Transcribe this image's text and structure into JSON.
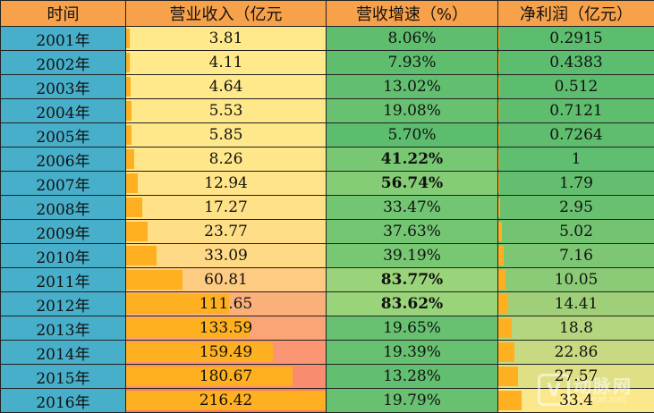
{
  "columns": [
    "时间",
    "营业收入（亿元",
    "营收增速（%）",
    "净利润（亿元）"
  ],
  "rows": [
    {
      "year": "2001年",
      "revenue": "3.81",
      "growth": "8.06%",
      "profit": "0.2915"
    },
    {
      "year": "2002年",
      "revenue": "4.11",
      "growth": "7.93%",
      "profit": "0.4383"
    },
    {
      "year": "2003年",
      "revenue": "4.64",
      "growth": "13.02%",
      "profit": "0.512"
    },
    {
      "year": "2004年",
      "revenue": "5.53",
      "growth": "19.08%",
      "profit": "0.7121"
    },
    {
      "year": "2005年",
      "revenue": "5.85",
      "growth": "5.70%",
      "profit": "0.7264"
    },
    {
      "year": "2006年",
      "revenue": "8.26",
      "growth": "41.22%",
      "profit": "1"
    },
    {
      "year": "2007年",
      "revenue": "12.94",
      "growth": "56.74%",
      "profit": "1.79"
    },
    {
      "year": "2008年",
      "revenue": "17.27",
      "growth": "33.47%",
      "profit": "2.95"
    },
    {
      "year": "2009年",
      "revenue": "23.77",
      "growth": "37.63%",
      "profit": "5.02"
    },
    {
      "year": "2010年",
      "revenue": "33.09",
      "growth": "39.19%",
      "profit": "7.16"
    },
    {
      "year": "2011年",
      "revenue": "60.81",
      "growth": "83.77%",
      "profit": "10.05"
    },
    {
      "year": "2012年",
      "revenue": "111.65",
      "growth": "83.62%",
      "profit": "14.41"
    },
    {
      "year": "2013年",
      "revenue": "133.59",
      "growth": "19.65%",
      "profit": "18.8"
    },
    {
      "year": "2014年",
      "revenue": "159.49",
      "growth": "19.39%",
      "profit": "22.86"
    },
    {
      "year": "2015年",
      "revenue": "180.67",
      "growth": "13.28%",
      "profit": "27.57"
    },
    {
      "year": "2016年",
      "revenue": "216.42",
      "growth": "19.79%",
      "profit": "33.4"
    }
  ],
  "bold_growth_rows": [
    5,
    6,
    10,
    11
  ],
  "colors": {
    "header": "#f7a24a",
    "year_cell": "#47afc9",
    "data_bar": "#ffb020",
    "revenue_scale_low": "#ffe98a",
    "revenue_scale_high": "#f8786a",
    "growth_scale_low": "#5cbd6e",
    "growth_scale_high": "#9ad47a",
    "profit_scale_low": "#5cbd6e",
    "profit_scale_high": "#fbe88a"
  },
  "watermark": {
    "name": "动脉网",
    "url": "vcbeat.net",
    "logo": "V"
  }
}
